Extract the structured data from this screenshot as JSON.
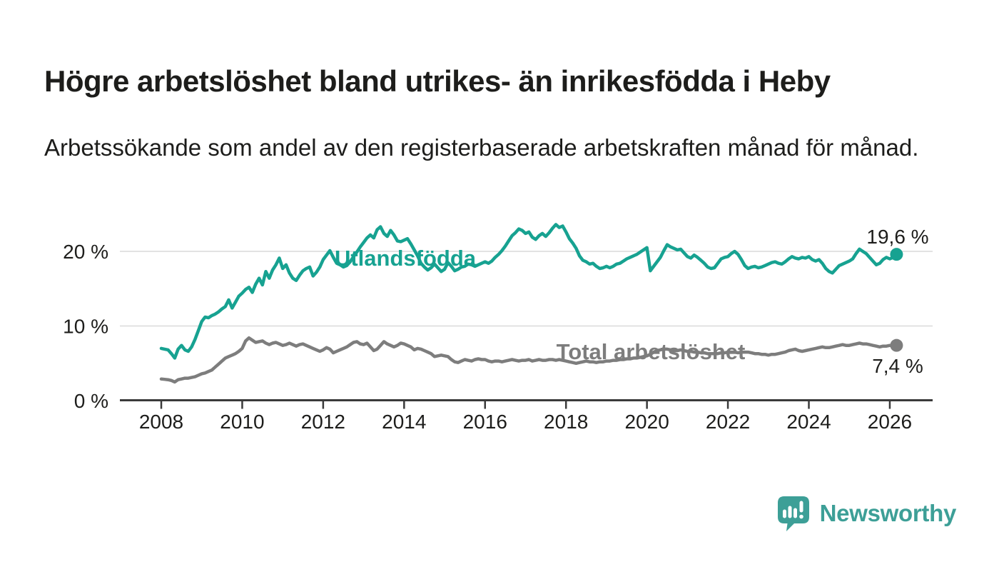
{
  "chart_data": {
    "type": "line",
    "title": "Högre arbetslöshet bland utrikes- än inrikesfödda i Heby",
    "subtitle": "Arbetssökande som andel av den registerbaserade arbetskraften månad för månad.",
    "xlabel": "",
    "ylabel": "",
    "x_start_year": 2008.0,
    "x_step_years": 0.0833333,
    "x_ticks": [
      "2008",
      "2010",
      "2012",
      "2014",
      "2016",
      "2018",
      "2020",
      "2022",
      "2024",
      "2026"
    ],
    "y_ticks": [
      {
        "value": 0,
        "label": "0 %"
      },
      {
        "value": 10,
        "label": "10 %"
      },
      {
        "value": 20,
        "label": "20 %"
      }
    ],
    "ylim": [
      0,
      25
    ],
    "xlim": [
      2007.0,
      2027.1
    ],
    "grid": "horizontal",
    "legend_position": "inline-labels",
    "series": [
      {
        "name": "Utlandsfödda",
        "color": "#17a291",
        "end_label": "19,6 %",
        "final_value": 19.6,
        "values": [
          7.0,
          6.9,
          6.8,
          6.3,
          5.7,
          6.9,
          7.4,
          6.8,
          6.6,
          7.2,
          8.2,
          9.4,
          10.6,
          11.2,
          11.1,
          11.4,
          11.6,
          11.9,
          12.3,
          12.6,
          13.5,
          12.4,
          13.2,
          14.0,
          14.4,
          14.9,
          15.2,
          14.5,
          15.6,
          16.4,
          15.5,
          17.3,
          16.4,
          17.5,
          18.2,
          19.1,
          17.7,
          18.2,
          17.1,
          16.4,
          16.1,
          16.8,
          17.4,
          17.7,
          17.9,
          16.7,
          17.2,
          17.9,
          18.9,
          19.5,
          20.1,
          19.2,
          18.4,
          18.2,
          17.9,
          18.1,
          18.6,
          19.3,
          19.9,
          20.6,
          21.2,
          21.8,
          22.2,
          21.8,
          22.9,
          23.3,
          22.4,
          22.0,
          22.8,
          22.2,
          21.4,
          21.3,
          21.5,
          21.7,
          21.0,
          20.2,
          19.4,
          18.4,
          17.9,
          17.5,
          17.8,
          18.3,
          17.8,
          17.3,
          17.6,
          18.5,
          18.0,
          17.4,
          17.6,
          17.9,
          18.0,
          18.3,
          18.2,
          18.0,
          18.2,
          18.4,
          18.6,
          18.4,
          18.7,
          19.2,
          19.6,
          20.1,
          20.7,
          21.4,
          22.1,
          22.5,
          23.0,
          22.8,
          22.4,
          22.6,
          21.9,
          21.6,
          22.1,
          22.4,
          22.0,
          22.5,
          23.1,
          23.6,
          23.2,
          23.4,
          22.6,
          21.7,
          21.1,
          20.4,
          19.4,
          18.8,
          18.6,
          18.3,
          18.4,
          18.0,
          17.7,
          17.8,
          18.0,
          17.8,
          18.0,
          18.3,
          18.4,
          18.7,
          19.0,
          19.2,
          19.4,
          19.6,
          19.9,
          20.2,
          20.5,
          17.4,
          18.0,
          18.6,
          19.2,
          20.1,
          20.9,
          20.6,
          20.4,
          20.2,
          20.3,
          19.8,
          19.3,
          19.1,
          19.5,
          19.2,
          18.8,
          18.4,
          17.9,
          17.7,
          17.8,
          18.4,
          19.0,
          19.2,
          19.3,
          19.7,
          20.0,
          19.6,
          18.9,
          18.1,
          17.7,
          17.9,
          18.0,
          17.8,
          17.9,
          18.1,
          18.3,
          18.5,
          18.6,
          18.4,
          18.3,
          18.6,
          19.0,
          19.3,
          19.1,
          19.0,
          19.2,
          19.1,
          19.3,
          18.9,
          18.7,
          18.9,
          18.4,
          17.7,
          17.3,
          17.1,
          17.6,
          18.1,
          18.3,
          18.5,
          18.7,
          19.0,
          19.7,
          20.3,
          20.0,
          19.7,
          19.2,
          18.7,
          18.2,
          18.4,
          18.9,
          19.2,
          19.0,
          19.2,
          19.6
        ]
      },
      {
        "name": "Total arbetslöshet",
        "color": "#7d7d7d",
        "end_label": "7,4 %",
        "final_value": 7.4,
        "values": [
          2.9,
          2.85,
          2.8,
          2.7,
          2.5,
          2.8,
          2.9,
          3.0,
          3.0,
          3.1,
          3.2,
          3.4,
          3.6,
          3.7,
          3.9,
          4.1,
          4.5,
          4.9,
          5.3,
          5.7,
          5.9,
          6.1,
          6.3,
          6.6,
          7.0,
          8.0,
          8.4,
          8.1,
          7.8,
          7.9,
          8.0,
          7.7,
          7.5,
          7.7,
          7.8,
          7.6,
          7.4,
          7.5,
          7.7,
          7.5,
          7.3,
          7.5,
          7.6,
          7.4,
          7.2,
          7.0,
          6.8,
          6.6,
          6.8,
          7.1,
          6.9,
          6.4,
          6.6,
          6.8,
          7.0,
          7.2,
          7.5,
          7.8,
          7.9,
          7.6,
          7.5,
          7.7,
          7.2,
          6.7,
          6.9,
          7.4,
          7.9,
          7.6,
          7.4,
          7.2,
          7.4,
          7.7,
          7.6,
          7.4,
          7.2,
          6.8,
          7.0,
          6.9,
          6.7,
          6.5,
          6.3,
          5.9,
          6.0,
          6.1,
          6.0,
          5.9,
          5.5,
          5.2,
          5.1,
          5.3,
          5.5,
          5.4,
          5.3,
          5.5,
          5.6,
          5.5,
          5.5,
          5.3,
          5.2,
          5.3,
          5.3,
          5.2,
          5.3,
          5.4,
          5.5,
          5.4,
          5.3,
          5.4,
          5.4,
          5.5,
          5.3,
          5.4,
          5.5,
          5.4,
          5.4,
          5.5,
          5.5,
          5.4,
          5.5,
          5.4,
          5.3,
          5.2,
          5.1,
          5.0,
          5.1,
          5.2,
          5.3,
          5.2,
          5.2,
          5.1,
          5.2,
          5.2,
          5.3,
          5.3,
          5.4,
          5.4,
          5.5,
          5.5,
          5.6,
          5.6,
          5.7,
          5.7,
          5.8,
          5.9,
          6.0,
          6.2,
          6.5,
          6.7,
          6.8,
          6.9,
          6.9,
          6.8,
          6.7,
          6.7,
          6.8,
          6.7,
          6.6,
          6.6,
          6.5,
          6.5,
          6.4,
          6.4,
          6.3,
          6.3,
          6.3,
          6.3,
          6.4,
          6.4,
          6.5,
          6.5,
          6.5,
          6.4,
          6.5,
          6.5,
          6.5,
          6.4,
          6.3,
          6.3,
          6.2,
          6.2,
          6.1,
          6.2,
          6.2,
          6.3,
          6.4,
          6.5,
          6.7,
          6.8,
          6.9,
          6.7,
          6.6,
          6.7,
          6.8,
          6.9,
          7.0,
          7.1,
          7.2,
          7.1,
          7.1,
          7.2,
          7.3,
          7.4,
          7.5,
          7.4,
          7.4,
          7.5,
          7.6,
          7.7,
          7.6,
          7.6,
          7.5,
          7.4,
          7.3,
          7.2,
          7.3,
          7.3,
          7.4,
          7.4,
          7.4
        ]
      }
    ],
    "colors": {
      "accent_teal": "#17a291",
      "line_gray": "#7d7d7d",
      "text_dark": "#1d1d1b",
      "axis": "#3a3a3a",
      "gridline": "#d9d9d9",
      "logo_teal": "#3d9f97"
    }
  },
  "footer": {
    "brand": "Newsworthy"
  }
}
